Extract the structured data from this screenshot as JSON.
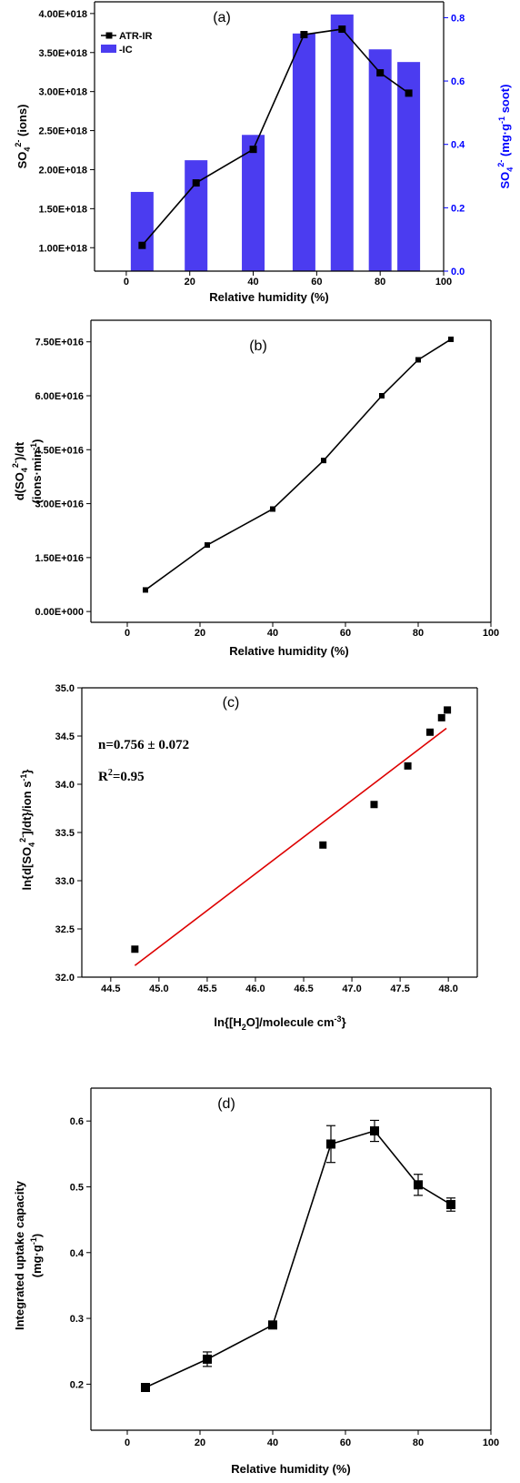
{
  "chart_data": [
    {
      "id": "a",
      "type": "bar",
      "panel_label": "(a)",
      "xlabel": "Relative humidity (%)",
      "ylabel": "SO",
      "ylabel_sub": "4",
      "ylabel_sup": "2-",
      "ylabel_rest": " (ions)",
      "y2label": "SO",
      "y2label_sub": "4",
      "y2label_sup": "2-",
      "y2label_rest": " (mg·g",
      "y2label_sup2": "-1",
      "y2label_rest2": " soot)",
      "xlim": [
        -10,
        100
      ],
      "ylim": [
        7e+17,
        4.15e+18
      ],
      "y2lim": [
        0.0,
        0.85
      ],
      "x_ticks": [
        0,
        20,
        40,
        60,
        80,
        100
      ],
      "y_ticks": [
        1e+18,
        1.5e+18,
        2e+18,
        2.5e+18,
        3e+18,
        3.5e+18,
        4e+18
      ],
      "y_tick_labels": [
        "1.00E+018",
        "1.50E+018",
        "2.00E+018",
        "2.50E+018",
        "3.00E+018",
        "3.50E+018",
        "4.00E+018"
      ],
      "y2_ticks": [
        0.0,
        0.2,
        0.4,
        0.6,
        0.8
      ],
      "y2_tick_labels": [
        "0.0",
        "0.2",
        "0.4",
        "0.6",
        "0.8"
      ],
      "legend_position": "top-left",
      "colors": {
        "bars": "#4b3cf0",
        "line": "#000000",
        "right_axis": "#0000ff"
      },
      "series": [
        {
          "name": "ATR-IR",
          "kind": "line",
          "axis": "left",
          "x": [
            5,
            22,
            40,
            56,
            68,
            80,
            89
          ],
          "y": [
            1.03e+18,
            1.83e+18,
            2.26e+18,
            3.73e+18,
            3.8e+18,
            3.24e+18,
            2.98e+18
          ]
        },
        {
          "name": "-IC",
          "kind": "bar",
          "axis": "right",
          "x": [
            5,
            22,
            40,
            56,
            68,
            80,
            89
          ],
          "y": [
            0.25,
            0.35,
            0.43,
            0.75,
            0.81,
            0.7,
            0.66
          ]
        }
      ]
    },
    {
      "id": "b",
      "type": "line",
      "panel_label": "(b)",
      "xlabel": "Relative humidity (%)",
      "ylabel_line1_pre": "d(SO",
      "ylabel_line1_sub": "4",
      "ylabel_line1_sup": "2-",
      "ylabel_line1_post": ")/dt",
      "ylabel_line2_pre": "(ions·min",
      "ylabel_line2_sup": "-1",
      "ylabel_line2_post": ")",
      "xlim": [
        -10,
        100
      ],
      "ylim": [
        -3000000000000000.0,
        8.1e+16
      ],
      "x_ticks": [
        0,
        20,
        40,
        60,
        80,
        100
      ],
      "y_ticks": [
        0,
        1.5e+16,
        3e+16,
        4.5e+16,
        6e+16,
        7.5e+16
      ],
      "y_tick_labels": [
        "0.00E+000",
        "1.50E+016",
        "3.00E+016",
        "4.50E+016",
        "6.00E+016",
        "7.50E+016"
      ],
      "series": [
        {
          "x": [
            5,
            22,
            40,
            54,
            70,
            80,
            89
          ],
          "y": [
            6000000000000000.0,
            1.85e+16,
            2.85e+16,
            4.2e+16,
            6e+16,
            7e+16,
            7.57e+16
          ]
        }
      ]
    },
    {
      "id": "c",
      "type": "scatter",
      "panel_label": "(c)",
      "xlabel_pre": "ln{[H",
      "xlabel_sub": "2",
      "xlabel_mid": "O]/molecule cm",
      "xlabel_sup": "-3",
      "xlabel_post": "}",
      "ylabel_pre": "ln{d[SO",
      "ylabel_sub": "4",
      "ylabel_sup": "2-",
      "ylabel_post": "]/dt}/ion s",
      "ylabel_sup2": "-1",
      "ylabel_post2": "}",
      "annotation_n": "n=0.756 ± 0.072",
      "annotation_r_pre": "R",
      "annotation_r_sup": "2",
      "annotation_r_post": "=0.95",
      "xlim": [
        44.2,
        48.3
      ],
      "ylim": [
        32.0,
        35.0
      ],
      "x_ticks": [
        44.5,
        45.0,
        45.5,
        46.0,
        46.5,
        47.0,
        47.5,
        48.0
      ],
      "x_tick_labels": [
        "44.5",
        "45.0",
        "45.5",
        "46.0",
        "46.5",
        "47.0",
        "47.5",
        "48.0"
      ],
      "y_ticks": [
        32.0,
        32.5,
        33.0,
        33.5,
        34.0,
        34.5,
        35.0
      ],
      "y_tick_labels": [
        "32.0",
        "32.5",
        "33.0",
        "33.5",
        "34.0",
        "34.5",
        "35.0"
      ],
      "colors": {
        "fit": "#dd0000",
        "points": "#000000"
      },
      "points": {
        "x": [
          44.75,
          46.7,
          47.23,
          47.58,
          47.81,
          47.93,
          47.99
        ],
        "y": [
          32.29,
          33.37,
          33.79,
          34.19,
          34.54,
          34.69,
          34.77
        ]
      },
      "fit": {
        "x": [
          44.75,
          47.98
        ],
        "y": [
          32.12,
          34.58
        ]
      }
    },
    {
      "id": "d",
      "type": "line",
      "panel_label": "(d)",
      "xlabel": "Relative humidity (%)",
      "ylabel_line1": "Integrated uptake capacity",
      "ylabel_line2_pre": "(mg·g",
      "ylabel_line2_sup": "-1",
      "ylabel_line2_post": ")",
      "xlim": [
        -10,
        100
      ],
      "ylim": [
        0.13,
        0.65
      ],
      "x_ticks": [
        0,
        20,
        40,
        60,
        80,
        100
      ],
      "y_ticks": [
        0.2,
        0.3,
        0.4,
        0.5,
        0.6
      ],
      "y_tick_labels": [
        "0.2",
        "0.3",
        "0.4",
        "0.5",
        "0.6"
      ],
      "series": [
        {
          "x": [
            5,
            22,
            40,
            56,
            68,
            80,
            89
          ],
          "y": [
            0.195,
            0.238,
            0.29,
            0.565,
            0.585,
            0.503,
            0.473
          ],
          "err": [
            0.0,
            0.011,
            0.0,
            0.028,
            0.016,
            0.016,
            0.01
          ]
        }
      ]
    }
  ]
}
